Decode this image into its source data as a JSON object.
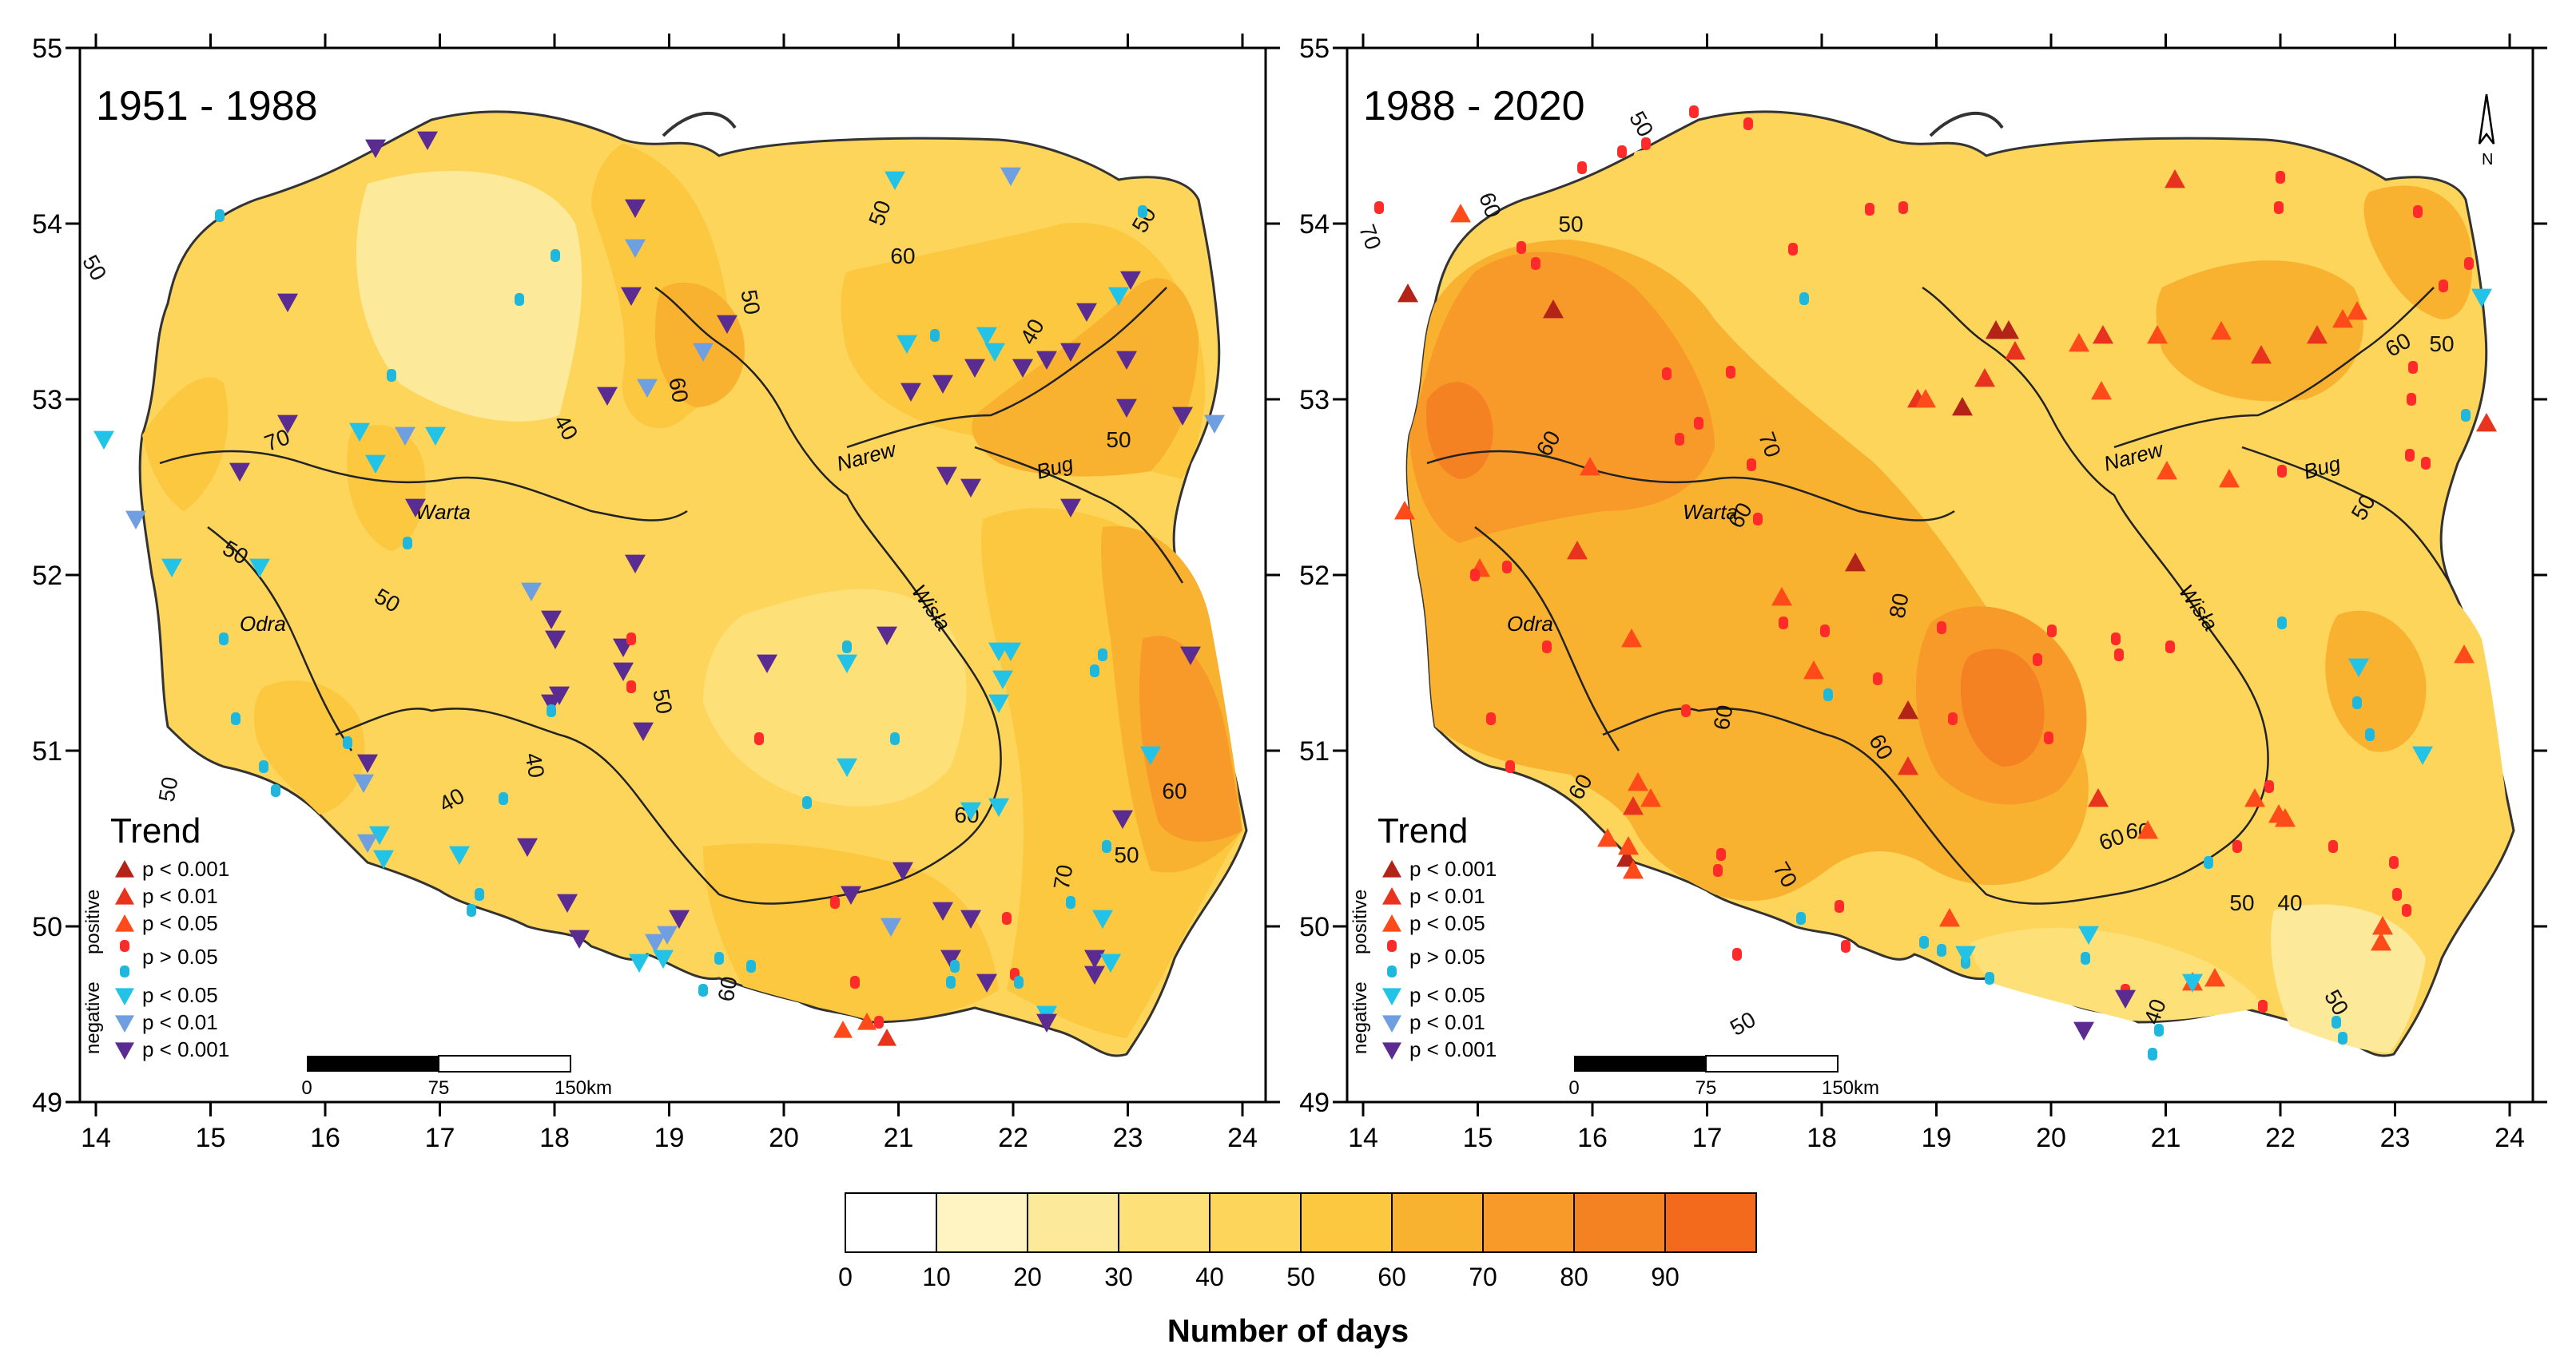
{
  "colors": {
    "class_10_20": "#fff4c2",
    "class_20_30": "#fde99a",
    "class_30_40": "#fde078",
    "class_40_50": "#fdd55a",
    "class_50_60": "#fbc840",
    "class_60_70": "#f9b130",
    "class_70_80": "#f79a2a",
    "class_80_90": "#f58222",
    "class_90_100": "#f36a1c",
    "p_lt_0_001_pos": "#b32318",
    "p_lt_0_01_pos": "#e8341f",
    "p_lt_0_05_pos": "#ff4a1a",
    "p_gt_0_05_pos": "#ff2b2b",
    "p_gt_0_05_neg": "#1fb8dc",
    "p_lt_0_05_neg": "#22c3e6",
    "p_lt_0_01_neg": "#6f9fe0",
    "p_lt_0_001_neg": "#5a2c91"
  },
  "map": {
    "x_ticks": [
      "14",
      "15",
      "16",
      "17",
      "18",
      "19",
      "20",
      "21",
      "22",
      "23",
      "24"
    ],
    "y_ticks": [
      "55",
      "54",
      "53",
      "52",
      "51",
      "50",
      "49"
    ],
    "rivers": [
      "Warta",
      "Odra",
      "Wisła",
      "Narew",
      "Bug"
    ]
  },
  "panels": [
    {
      "title": "1951 - 1988",
      "contour_labels": [
        "50",
        "50",
        "50",
        "60",
        "40",
        "50",
        "50",
        "50",
        "40",
        "60",
        "50",
        "40",
        "50",
        "60",
        "70",
        "50",
        "60",
        "70",
        "50",
        "40",
        "60"
      ],
      "rivers": [
        "Warta",
        "Odra",
        "Wisła",
        "Narew",
        "Bug"
      ]
    },
    {
      "title": "1988 - 2020",
      "contour_labels": [
        "70",
        "60",
        "50",
        "50",
        "70",
        "60",
        "60",
        "80",
        "60",
        "70",
        "50",
        "60",
        "50",
        "60",
        "40",
        "50",
        "60",
        "50",
        "40",
        "60",
        "50",
        "60"
      ],
      "rivers": [
        "Warta",
        "Odra",
        "Wisła",
        "Narew",
        "Bug"
      ],
      "north_label": "N"
    }
  ],
  "legend": {
    "title": "Trend",
    "positive_label": "positive",
    "negative_label": "negative",
    "items": [
      {
        "label": "p < 0.001",
        "marker": "triangle-up",
        "color": "#b32318"
      },
      {
        "label": "p < 0.01",
        "marker": "triangle-up",
        "color": "#e8341f"
      },
      {
        "label": "p < 0.05",
        "marker": "triangle-up",
        "color": "#ff4a1a"
      },
      {
        "label": "p > 0.05",
        "marker": "dot-pair",
        "color": "#ff2b2b"
      },
      {
        "label": "p < 0.05",
        "marker": "triangle-down",
        "color": "#22c3e6"
      },
      {
        "label": "p < 0.01",
        "marker": "triangle-down",
        "color": "#6f9fe0"
      },
      {
        "label": "p < 0.001",
        "marker": "triangle-down",
        "color": "#5a2c91"
      }
    ]
  },
  "scale_bar": {
    "labels": [
      "0",
      "75",
      "150"
    ],
    "unit": "km"
  },
  "colorbar": {
    "title": "Number of days",
    "tick_labels": [
      "0",
      "10",
      "20",
      "30",
      "40",
      "50",
      "60",
      "70",
      "80",
      "90"
    ],
    "class_colors": [
      "#ffffff",
      "#fff4c2",
      "#fde99a",
      "#fde078",
      "#fdd55a",
      "#fbc840",
      "#f9b130",
      "#f79a2a",
      "#f58222",
      "#f36a1c"
    ]
  }
}
